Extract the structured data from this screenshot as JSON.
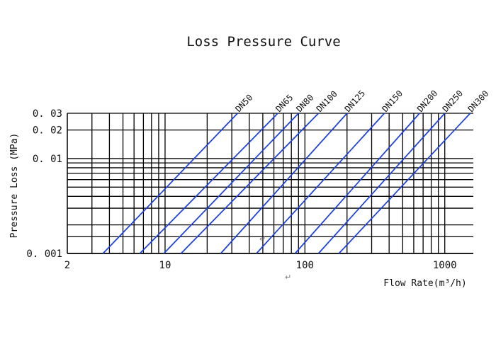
{
  "chart_data": {
    "type": "line",
    "title": "Loss Pressure Curve",
    "xlabel": "Flow Rate(m³/h)",
    "ylabel": "Pressure Loss (MPa)",
    "xscale": "log",
    "yscale": "log",
    "xlim": [
      2,
      1600
    ],
    "ylim": [
      0.001,
      0.03
    ],
    "x_tick_labels": [
      {
        "value": 2,
        "label": "2"
      },
      {
        "value": 10,
        "label": "10"
      },
      {
        "value": 100,
        "label": "100"
      },
      {
        "value": 1000,
        "label": "1000"
      }
    ],
    "y_tick_labels": [
      {
        "value": 0.03,
        "label": "0. 03"
      },
      {
        "value": 0.02,
        "label": "0. 02"
      },
      {
        "value": 0.01,
        "label": "0. 01"
      },
      {
        "value": 0.001,
        "label": "0. 001"
      }
    ],
    "x_gridlines": [
      3,
      4,
      5,
      6,
      7,
      8,
      9,
      10,
      20,
      30,
      40,
      50,
      60,
      70,
      80,
      90,
      100,
      200,
      300,
      400,
      500,
      600,
      700,
      800,
      900,
      1000
    ],
    "y_gridlines": [
      0.0015,
      0.002,
      0.003,
      0.004,
      0.005,
      0.006,
      0.007,
      0.008,
      0.009,
      0.01,
      0.02,
      0.03
    ],
    "grid": true,
    "series": [
      {
        "name": "DN50",
        "x": [
          3.6,
          33
        ],
        "y": [
          0.001,
          0.03
        ]
      },
      {
        "name": "DN65",
        "x": [
          6.6,
          64
        ],
        "y": [
          0.001,
          0.03
        ]
      },
      {
        "name": "DN80",
        "x": [
          9.8,
          90
        ],
        "y": [
          0.001,
          0.03
        ]
      },
      {
        "name": "DN100",
        "x": [
          13,
          125
        ],
        "y": [
          0.001,
          0.03
        ]
      },
      {
        "name": "DN125",
        "x": [
          25,
          200
        ],
        "y": [
          0.001,
          0.03
        ]
      },
      {
        "name": "DN150",
        "x": [
          45,
          370
        ],
        "y": [
          0.001,
          0.03
        ]
      },
      {
        "name": "DN200",
        "x": [
          85,
          660
        ],
        "y": [
          0.001,
          0.03
        ]
      },
      {
        "name": "DN250",
        "x": [
          125,
          1000
        ],
        "y": [
          0.001,
          0.03
        ]
      },
      {
        "name": "DN300",
        "x": [
          175,
          1520
        ],
        "y": [
          0.001,
          0.03
        ]
      }
    ],
    "line_color": "#1a3fe0",
    "grid_color": "#000000",
    "annotations": [
      "↵",
      "↵"
    ]
  }
}
